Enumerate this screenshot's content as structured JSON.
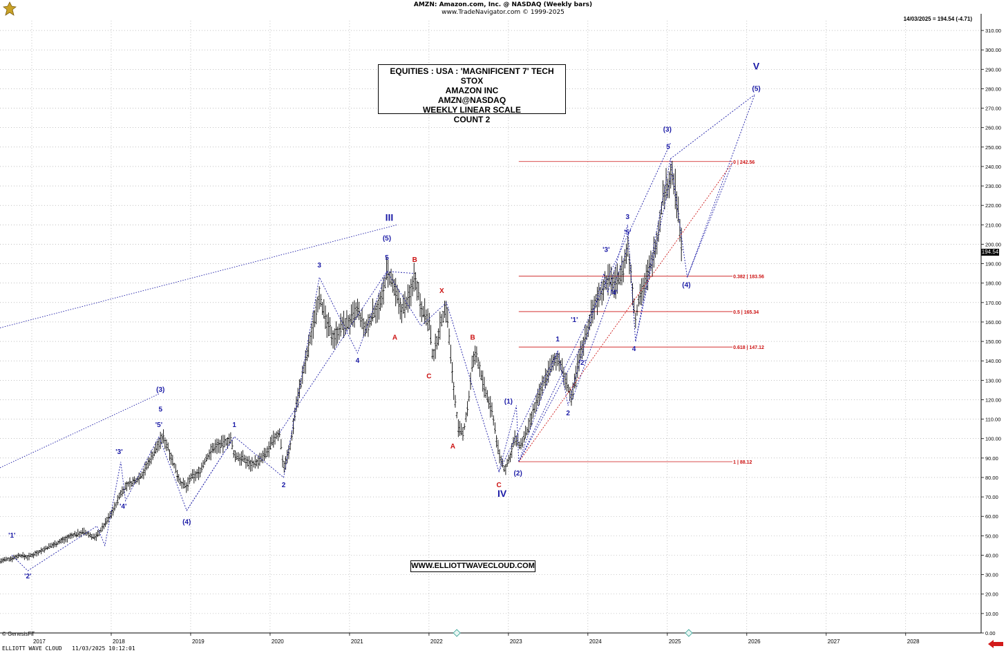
{
  "header": {
    "line1": "AMZN:  Amazon.com, Inc. @ NASDAQ  (Weekly bars)",
    "line2": "www.TradeNavigator.com © 1999-2025"
  },
  "last_quote": "14/03/2025 = 194.54 (-4.71)",
  "price_tag": "194.54",
  "title_box": [
    "EQUITIES : USA : 'MAGNIFICENT 7' TECH STOX",
    "AMAZON INC",
    "AMZN@NASDAQ",
    "WEEKLY LINEAR SCALE",
    "COUNT 2"
  ],
  "url_box": "WWW.ELLIOTTWAVECLOUD.COM",
  "footer": {
    "genesis": "© GenesisFT",
    "left": "ELLIOTT WAVE CLOUD   11/03/2025 10:12:01"
  },
  "colors": {
    "wave_blue": "#1a1aa6",
    "wave_red": "#cc1111",
    "fib_red": "#cc1111",
    "bars": "#000000",
    "grid": "#9a9a9a"
  },
  "icons": [
    "logo-icon",
    "back-arrow-icon",
    "event-marker-icon"
  ],
  "chart_data": {
    "type": "line",
    "ylim": [
      0,
      315
    ],
    "xlim": [
      2016.6,
      2028.95
    ],
    "y_ticks": [
      0,
      10,
      20,
      30,
      40,
      50,
      60,
      70,
      80,
      90,
      100,
      110,
      120,
      130,
      140,
      150,
      160,
      170,
      180,
      190,
      200,
      210,
      220,
      230,
      240,
      250,
      260,
      270,
      280,
      290,
      300,
      310
    ],
    "y_tick_labels": [
      "0.00",
      "10.00",
      "20.00",
      "30.00",
      "40.00",
      "50.00",
      "60.00",
      "70.00",
      "80.00",
      "90.00",
      "100.00",
      "110.00",
      "120.00",
      "130.00",
      "140.00",
      "150.00",
      "160.00",
      "170.00",
      "180.00",
      "190.00",
      "200.00",
      "210.00",
      "220.00",
      "230.00",
      "240.00",
      "250.00",
      "260.00",
      "270.00",
      "280.00",
      "290.00",
      "300.00",
      "310.00"
    ],
    "x_ticks": [
      2017,
      2018,
      2019,
      2020,
      2021,
      2022,
      2023,
      2024,
      2025,
      2026,
      2027,
      2028
    ],
    "x_tick_labels": [
      "2017",
      "2018",
      "2019",
      "2020",
      "2021",
      "2022",
      "2023",
      "2024",
      "2025",
      "2026",
      "2027",
      "2028"
    ],
    "grid": true,
    "price_path": [
      [
        2016.6,
        37
      ],
      [
        2016.72,
        38
      ],
      [
        2016.85,
        40
      ],
      [
        2016.95,
        39
      ],
      [
        2017.05,
        41
      ],
      [
        2017.2,
        44
      ],
      [
        2017.35,
        47
      ],
      [
        2017.5,
        50
      ],
      [
        2017.65,
        52
      ],
      [
        2017.8,
        49
      ],
      [
        2017.92,
        56
      ],
      [
        2018.05,
        65
      ],
      [
        2018.12,
        72
      ],
      [
        2018.2,
        76
      ],
      [
        2018.3,
        78
      ],
      [
        2018.4,
        82
      ],
      [
        2018.5,
        90
      ],
      [
        2018.58,
        96
      ],
      [
        2018.65,
        101
      ],
      [
        2018.72,
        95
      ],
      [
        2018.8,
        85
      ],
      [
        2018.88,
        77
      ],
      [
        2018.95,
        75
      ],
      [
        2019.0,
        80
      ],
      [
        2019.1,
        82
      ],
      [
        2019.2,
        90
      ],
      [
        2019.3,
        96
      ],
      [
        2019.4,
        97
      ],
      [
        2019.5,
        100
      ],
      [
        2019.55,
        91
      ],
      [
        2019.65,
        90
      ],
      [
        2019.75,
        87
      ],
      [
        2019.85,
        88
      ],
      [
        2019.95,
        92
      ],
      [
        2020.05,
        100
      ],
      [
        2020.12,
        103
      ],
      [
        2020.17,
        85
      ],
      [
        2020.25,
        95
      ],
      [
        2020.33,
        118
      ],
      [
        2020.45,
        140
      ],
      [
        2020.55,
        160
      ],
      [
        2020.62,
        175
      ],
      [
        2020.7,
        160
      ],
      [
        2020.8,
        152
      ],
      [
        2020.9,
        158
      ],
      [
        2021.0,
        160
      ],
      [
        2021.1,
        166
      ],
      [
        2021.2,
        155
      ],
      [
        2021.3,
        165
      ],
      [
        2021.4,
        170
      ],
      [
        2021.47,
        186
      ],
      [
        2021.55,
        178
      ],
      [
        2021.65,
        166
      ],
      [
        2021.75,
        172
      ],
      [
        2021.82,
        185
      ],
      [
        2021.9,
        168
      ],
      [
        2022.0,
        160
      ],
      [
        2022.05,
        141
      ],
      [
        2022.15,
        160
      ],
      [
        2022.22,
        168
      ],
      [
        2022.3,
        130
      ],
      [
        2022.37,
        105
      ],
      [
        2022.43,
        102
      ],
      [
        2022.5,
        120
      ],
      [
        2022.55,
        140
      ],
      [
        2022.6,
        143
      ],
      [
        2022.7,
        125
      ],
      [
        2022.8,
        113
      ],
      [
        2022.88,
        92
      ],
      [
        2022.95,
        84
      ],
      [
        2023.0,
        88
      ],
      [
        2023.08,
        100
      ],
      [
        2023.15,
        96
      ],
      [
        2023.25,
        105
      ],
      [
        2023.35,
        118
      ],
      [
        2023.45,
        130
      ],
      [
        2023.55,
        138
      ],
      [
        2023.62,
        142
      ],
      [
        2023.72,
        130
      ],
      [
        2023.8,
        120
      ],
      [
        2023.88,
        140
      ],
      [
        2023.95,
        150
      ],
      [
        2024.05,
        165
      ],
      [
        2024.15,
        175
      ],
      [
        2024.25,
        182
      ],
      [
        2024.35,
        180
      ],
      [
        2024.45,
        188
      ],
      [
        2024.5,
        198
      ],
      [
        2024.55,
        182
      ],
      [
        2024.6,
        160
      ],
      [
        2024.65,
        175
      ],
      [
        2024.72,
        180
      ],
      [
        2024.8,
        190
      ],
      [
        2024.88,
        205
      ],
      [
        2024.95,
        225
      ],
      [
        2025.0,
        230
      ],
      [
        2025.05,
        236
      ],
      [
        2025.1,
        228
      ],
      [
        2025.15,
        210
      ],
      [
        2025.19,
        194.54
      ]
    ],
    "fib_levels": [
      {
        "ratio_label": "0 | 242.56",
        "value": 242.56
      },
      {
        "ratio_label": "0.382 | 183.56",
        "value": 183.56
      },
      {
        "ratio_label": "0.5 | 165.34",
        "value": 165.34
      },
      {
        "ratio_label": "0.618 | 147.12",
        "value": 147.12
      },
      {
        "ratio_label": "1 | 88.12",
        "value": 88.12
      }
    ],
    "fib_x_range": [
      2023.13,
      2025.82
    ],
    "wave_paths": [
      [
        [
          2016.75,
          40
        ],
        [
          2016.95,
          32
        ],
        [
          2017.82,
          55
        ],
        [
          2017.92,
          45
        ],
        [
          2018.12,
          88
        ],
        [
          2018.18,
          68
        ],
        [
          2018.6,
          101
        ],
        [
          2018.95,
          63
        ],
        [
          2019.55,
          101
        ],
        [
          2020.17,
          80
        ],
        [
          2020.62,
          183
        ],
        [
          2021.1,
          144
        ],
        [
          2021.47,
          186
        ],
        [
          2021.9,
          158
        ],
        [
          2022.22,
          170
        ],
        [
          2022.88,
          83
        ],
        [
          2023.1,
          117
        ],
        [
          2023.13,
          88
        ],
        [
          2023.62,
          145
        ],
        [
          2023.75,
          117
        ],
        [
          2024.2,
          185
        ],
        [
          2024.25,
          175
        ],
        [
          2024.5,
          210
        ],
        [
          2024.6,
          150
        ],
        [
          2025.04,
          244
        ],
        [
          2025.25,
          183
        ],
        [
          2026.1,
          277
        ]
      ],
      [
        [
          2018.95,
          63
        ],
        [
          2019.55,
          101
        ]
      ],
      [
        [
          2020.12,
          103
        ],
        [
          2021.47,
          186
        ]
      ],
      [
        [
          2021.47,
          186
        ],
        [
          2021.82,
          185
        ]
      ],
      [
        [
          2022.88,
          83
        ],
        [
          2023.62,
          145
        ]
      ],
      [
        [
          2023.13,
          88
        ],
        [
          2023.95,
          150
        ]
      ],
      [
        [
          2023.13,
          88
        ],
        [
          2024.05,
          165
        ]
      ],
      [
        [
          2023.8,
          120
        ],
        [
          2024.5,
          198
        ]
      ],
      [
        [
          2024.6,
          150
        ],
        [
          2025.05,
          236
        ]
      ],
      [
        [
          2024.05,
          165
        ],
        [
          2025.04,
          252
        ]
      ],
      [
        [
          2025.04,
          244
        ],
        [
          2026.1,
          277
        ]
      ],
      [
        [
          2025.25,
          183
        ],
        [
          2025.82,
          242
        ]
      ]
    ],
    "trend_lines": [
      [
        [
          2016.6,
          85
        ],
        [
          2018.6,
          123
        ]
      ],
      [
        [
          2016.6,
          157
        ],
        [
          2021.6,
          210
        ]
      ]
    ],
    "wave_labels": [
      {
        "text": "'1'",
        "x": 2016.75,
        "y": 49,
        "color": "blue"
      },
      {
        "text": "'2'",
        "x": 2016.95,
        "y": 28,
        "color": "blue"
      },
      {
        "text": "'3'",
        "x": 2018.1,
        "y": 92,
        "color": "blue"
      },
      {
        "text": "'4'",
        "x": 2018.15,
        "y": 64,
        "color": "blue"
      },
      {
        "text": "'5'",
        "x": 2018.6,
        "y": 106,
        "color": "blue"
      },
      {
        "text": "5",
        "x": 2018.62,
        "y": 114,
        "color": "blue"
      },
      {
        "text": "(3)",
        "x": 2018.62,
        "y": 124,
        "color": "blue"
      },
      {
        "text": "(4)",
        "x": 2018.95,
        "y": 56,
        "color": "blue"
      },
      {
        "text": "1",
        "x": 2019.55,
        "y": 106,
        "color": "blue"
      },
      {
        "text": "2",
        "x": 2020.17,
        "y": 75,
        "color": "blue"
      },
      {
        "text": "3",
        "x": 2020.62,
        "y": 188,
        "color": "blue"
      },
      {
        "text": "4",
        "x": 2021.1,
        "y": 139,
        "color": "blue"
      },
      {
        "text": "5",
        "x": 2021.47,
        "y": 192,
        "color": "blue"
      },
      {
        "text": "(5)",
        "x": 2021.47,
        "y": 202,
        "color": "blue"
      },
      {
        "text": "III",
        "x": 2021.5,
        "y": 212,
        "color": "blue"
      },
      {
        "text": "A",
        "x": 2021.57,
        "y": 151,
        "color": "red"
      },
      {
        "text": "B",
        "x": 2021.82,
        "y": 191,
        "color": "red"
      },
      {
        "text": "C",
        "x": 2022.0,
        "y": 131,
        "color": "red"
      },
      {
        "text": "X",
        "x": 2022.16,
        "y": 175,
        "color": "red"
      },
      {
        "text": "A",
        "x": 2022.3,
        "y": 95,
        "color": "red"
      },
      {
        "text": "B",
        "x": 2022.55,
        "y": 151,
        "color": "red"
      },
      {
        "text": "(1)",
        "x": 2023.0,
        "y": 118,
        "color": "blue"
      },
      {
        "text": "C",
        "x": 2022.88,
        "y": 75,
        "color": "red"
      },
      {
        "text": "IV",
        "x": 2022.92,
        "y": 70,
        "color": "blue"
      },
      {
        "text": "(2)",
        "x": 2023.12,
        "y": 81,
        "color": "blue"
      },
      {
        "text": "1",
        "x": 2023.62,
        "y": 150,
        "color": "blue"
      },
      {
        "text": "2",
        "x": 2023.75,
        "y": 112,
        "color": "blue"
      },
      {
        "text": "'1'",
        "x": 2023.83,
        "y": 160,
        "color": "blue"
      },
      {
        "text": "'2'",
        "x": 2023.93,
        "y": 138,
        "color": "blue"
      },
      {
        "text": "'3'",
        "x": 2024.23,
        "y": 196,
        "color": "blue"
      },
      {
        "text": "'4'",
        "x": 2024.33,
        "y": 174,
        "color": "blue"
      },
      {
        "text": "'5'",
        "x": 2024.5,
        "y": 205,
        "color": "blue"
      },
      {
        "text": "3",
        "x": 2024.5,
        "y": 213,
        "color": "blue"
      },
      {
        "text": "4",
        "x": 2024.58,
        "y": 145,
        "color": "blue"
      },
      {
        "text": "5",
        "x": 2025.01,
        "y": 249,
        "color": "blue"
      },
      {
        "text": "(3)",
        "x": 2025.0,
        "y": 258,
        "color": "blue"
      },
      {
        "text": "(4)",
        "x": 2025.24,
        "y": 178,
        "color": "blue"
      },
      {
        "text": "(5)",
        "x": 2026.12,
        "y": 279,
        "color": "blue"
      },
      {
        "text": "V",
        "x": 2026.12,
        "y": 290,
        "color": "blue"
      }
    ],
    "event_markers_x": [
      2022.35,
      2025.27
    ]
  }
}
